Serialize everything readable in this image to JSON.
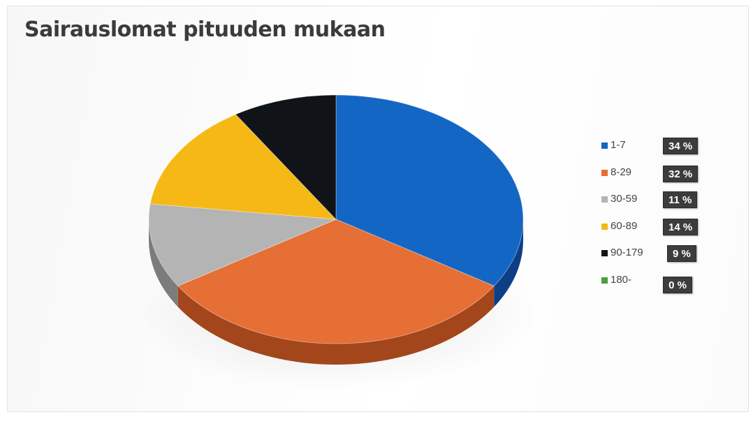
{
  "chart_data": {
    "type": "pie",
    "title": "Sairauslomat pituuden mukaan",
    "categories": [
      "1-7",
      "8-29",
      "30-59",
      "60-89",
      "90-179",
      "180-"
    ],
    "values": [
      34,
      32,
      11,
      14,
      9,
      0
    ],
    "value_labels": [
      "34 %",
      "32 %",
      "11 %",
      "14 %",
      "9 %",
      "0 %"
    ],
    "colors": [
      "#1466c4",
      "#e56f35",
      "#b4b4b4",
      "#f5b814",
      "#101418",
      "#4a9e3f"
    ],
    "side_colors": [
      "#0c3f86",
      "#a3461c",
      "#7c7c7c",
      "#b0820b",
      "#000000",
      "#2e6b27"
    ],
    "legend_position": "right",
    "style": "3d"
  }
}
